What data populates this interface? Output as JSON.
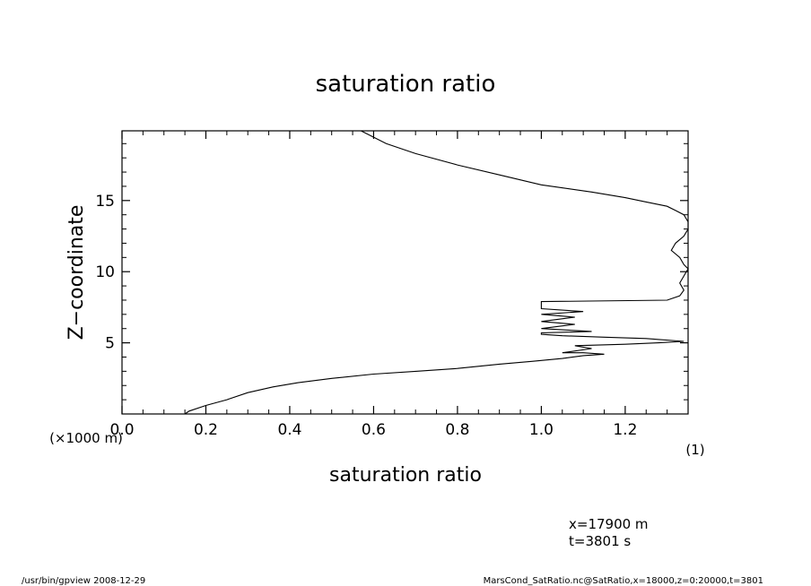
{
  "chart_data": {
    "type": "line",
    "title": "saturation ratio",
    "xlabel": "saturation ratio",
    "ylabel": "Z−coordinate",
    "x_unit_label": "(1)",
    "y_unit_label": "(×1000 m)",
    "xlim": [
      0.0,
      1.35
    ],
    "ylim": [
      0,
      19.9
    ],
    "x_ticks": [
      "0.0",
      "0.2",
      "0.4",
      "0.6",
      "0.8",
      "1.0",
      "1.2"
    ],
    "y_ticks": [
      "5",
      "10",
      "15"
    ],
    "grid": false,
    "series": [
      {
        "x": [
          0.15,
          0.16,
          0.2,
          0.25,
          0.3,
          0.36,
          0.42,
          0.5,
          0.6,
          0.7,
          0.8,
          0.9,
          0.98,
          1.05,
          1.1,
          1.15,
          1.1,
          1.05,
          1.12,
          1.08,
          1.2,
          1.28,
          1.34,
          1.25,
          1.15,
          1.05,
          1.0,
          1.0,
          1.12,
          1.0,
          1.08,
          1.0,
          1.08,
          1.0,
          1.1,
          1.0,
          1.0,
          1.3,
          1.33,
          1.34,
          1.33,
          1.34,
          1.35,
          1.34,
          1.33,
          1.31,
          1.32,
          1.34,
          1.35,
          1.35,
          1.34,
          1.32,
          1.3,
          1.25,
          1.2,
          1.12,
          1.0,
          0.9,
          0.8,
          0.7,
          0.63,
          0.57
        ],
        "y": [
          0.0,
          0.2,
          0.6,
          1.0,
          1.5,
          1.9,
          2.2,
          2.5,
          2.8,
          3.0,
          3.2,
          3.5,
          3.7,
          3.9,
          4.1,
          4.2,
          4.3,
          4.3,
          4.6,
          4.8,
          4.9,
          5.0,
          5.1,
          5.3,
          5.4,
          5.5,
          5.6,
          5.7,
          5.8,
          6.0,
          6.3,
          6.5,
          6.8,
          7.0,
          7.2,
          7.4,
          7.9,
          8.0,
          8.3,
          8.7,
          9.2,
          9.7,
          10.2,
          10.5,
          11.0,
          11.5,
          12.0,
          12.5,
          13.0,
          13.5,
          14.0,
          14.3,
          14.6,
          14.9,
          15.2,
          15.6,
          16.1,
          16.8,
          17.5,
          18.3,
          19.0,
          19.9
        ]
      }
    ]
  },
  "info": {
    "x_position": "x=17900  m",
    "time": "t=3801  s"
  },
  "footer": {
    "left": "/usr/bin/gpview   2008-12-29",
    "right": "MarsCond_SatRatio.nc@SatRatio,x=18000,z=0:20000,t=3801"
  }
}
